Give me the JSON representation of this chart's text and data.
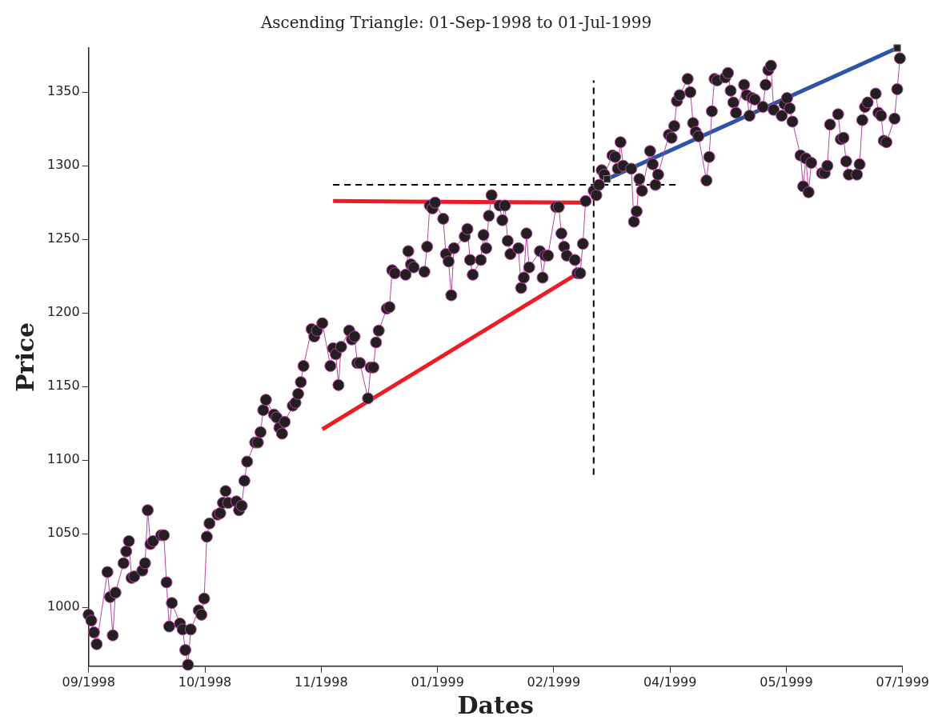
{
  "chart_data": {
    "type": "line",
    "title": "Ascending Triangle: 01-Sep-1998 to 01-Jul-1999",
    "xlabel": "Dates",
    "ylabel": "Price",
    "xlim": [
      "1998-09-01",
      "1999-07-01"
    ],
    "xticks": [
      {
        "value": "1998-09-01",
        "label": "09/1998"
      },
      {
        "value": "1998-10-14T07:00",
        "label": "10/1998"
      },
      {
        "value": "1998-11-26T14:00",
        "label": "11/1998"
      },
      {
        "value": "1999-01-08T21:00",
        "label": "01/1999"
      },
      {
        "value": "1999-02-21T03:00",
        "label": "02/1999"
      },
      {
        "value": "1999-04-05T10:00",
        "label": "04/1999"
      },
      {
        "value": "1999-05-18T17:00",
        "label": "05/1999"
      },
      {
        "value": "1999-07-01",
        "label": "07/1999"
      }
    ],
    "ylim": [
      960,
      1380
    ],
    "yticks": [
      1000,
      1050,
      1100,
      1150,
      1200,
      1250,
      1300,
      1350
    ],
    "series": [
      {
        "type": "line",
        "marker": "circle",
        "color": "#b5459f",
        "x": [
          "1998-09-01",
          "1998-09-02",
          "1998-09-03",
          "1998-09-04",
          "1998-09-08",
          "1998-09-09",
          "1998-09-10",
          "1998-09-11",
          "1998-09-14",
          "1998-09-15",
          "1998-09-16",
          "1998-09-17",
          "1998-09-18",
          "1998-09-21",
          "1998-09-22",
          "1998-09-23",
          "1998-09-24",
          "1998-09-25",
          "1998-09-28",
          "1998-09-29",
          "1998-09-30",
          "1998-10-01",
          "1998-10-02",
          "1998-10-05",
          "1998-10-06",
          "1998-10-07",
          "1998-10-08",
          "1998-10-09",
          "1998-10-12",
          "1998-10-13",
          "1998-10-14",
          "1998-10-15",
          "1998-10-16",
          "1998-10-19",
          "1998-10-20",
          "1998-10-21",
          "1998-10-22",
          "1998-10-23",
          "1998-10-26",
          "1998-10-27",
          "1998-10-28",
          "1998-10-29",
          "1998-10-30",
          "1998-11-02",
          "1998-11-03",
          "1998-11-04",
          "1998-11-05",
          "1998-11-06",
          "1998-11-09",
          "1998-11-10",
          "1998-11-11",
          "1998-11-12",
          "1998-11-13",
          "1998-11-16",
          "1998-11-17",
          "1998-11-18",
          "1998-11-19",
          "1998-11-20",
          "1998-11-23",
          "1998-11-24",
          "1998-11-25",
          "1998-11-27",
          "1998-11-30",
          "1998-12-01",
          "1998-12-02",
          "1998-12-03",
          "1998-12-04",
          "1998-12-07",
          "1998-12-08",
          "1998-12-09",
          "1998-12-10",
          "1998-12-11",
          "1998-12-14",
          "1998-12-15",
          "1998-12-16",
          "1998-12-17",
          "1998-12-18",
          "1998-12-21",
          "1998-12-22",
          "1998-12-23",
          "1998-12-24",
          "1998-12-28",
          "1998-12-29",
          "1998-12-30",
          "1998-12-31",
          "1999-01-04",
          "1999-01-05",
          "1999-01-06",
          "1999-01-07",
          "1999-01-08",
          "1999-01-11",
          "1999-01-12",
          "1999-01-13",
          "1999-01-14",
          "1999-01-15",
          "1999-01-19",
          "1999-01-20",
          "1999-01-21",
          "1999-01-22",
          "1999-01-25",
          "1999-01-26",
          "1999-01-27",
          "1999-01-28",
          "1999-01-29",
          "1999-02-01",
          "1999-02-02",
          "1999-02-03",
          "1999-02-04",
          "1999-02-05",
          "1999-02-08",
          "1999-02-09",
          "1999-02-10",
          "1999-02-11",
          "1999-02-12",
          "1999-02-16",
          "1999-02-17",
          "1999-02-18",
          "1999-02-19",
          "1999-02-22",
          "1999-02-23",
          "1999-02-24",
          "1999-02-25",
          "1999-02-26",
          "1999-03-01",
          "1999-03-02",
          "1999-03-03",
          "1999-03-04",
          "1999-03-05",
          "1999-03-08",
          "1999-03-09",
          "1999-03-10",
          "1999-03-11",
          "1999-03-12",
          "1999-03-15",
          "1999-03-16",
          "1999-03-17",
          "1999-03-18",
          "1999-03-19",
          "1999-03-22",
          "1999-03-23",
          "1999-03-24",
          "1999-03-25",
          "1999-03-26",
          "1999-03-29",
          "1999-03-30",
          "1999-03-31",
          "1999-04-01",
          "1999-04-05",
          "1999-04-06",
          "1999-04-07",
          "1999-04-08",
          "1999-04-09",
          "1999-04-12",
          "1999-04-13",
          "1999-04-14",
          "1999-04-15",
          "1999-04-16",
          "1999-04-19",
          "1999-04-20",
          "1999-04-21",
          "1999-04-22",
          "1999-04-23",
          "1999-04-26",
          "1999-04-27",
          "1999-04-28",
          "1999-04-29",
          "1999-04-30",
          "1999-05-03",
          "1999-05-04",
          "1999-05-05",
          "1999-05-06",
          "1999-05-07",
          "1999-05-10",
          "1999-05-11",
          "1999-05-12",
          "1999-05-13",
          "1999-05-14",
          "1999-05-17",
          "1999-05-18",
          "1999-05-19",
          "1999-05-20",
          "1999-05-21",
          "1999-05-24",
          "1999-05-25",
          "1999-05-26",
          "1999-05-27",
          "1999-05-28",
          "1999-06-01",
          "1999-06-02",
          "1999-06-03",
          "1999-06-04",
          "1999-06-07",
          "1999-06-08",
          "1999-06-09",
          "1999-06-10",
          "1999-06-11",
          "1999-06-14",
          "1999-06-15",
          "1999-06-16",
          "1999-06-17",
          "1999-06-18",
          "1999-06-21",
          "1999-06-22",
          "1999-06-23",
          "1999-06-24",
          "1999-06-25",
          "1999-06-28",
          "1999-06-29",
          "1999-06-30"
        ],
        "values": [
          995,
          991,
          983,
          975,
          1024,
          1007,
          981,
          1010,
          1030,
          1038,
          1045,
          1020,
          1021,
          1025,
          1030,
          1066,
          1043,
          1045,
          1049,
          1049,
          1017,
          987,
          1003,
          989,
          985,
          971,
          961,
          985,
          998,
          995,
          1006,
          1048,
          1057,
          1063,
          1064,
          1071,
          1079,
          1071,
          1072,
          1066,
          1069,
          1086,
          1099,
          1112,
          1112,
          1119,
          1134,
          1141,
          1131,
          1129,
          1122,
          1118,
          1126,
          1137,
          1139,
          1145,
          1153,
          1164,
          1189,
          1184,
          1188,
          1193,
          1164,
          1176,
          1172,
          1151,
          1177,
          1188,
          1182,
          1184,
          1166,
          1166,
          1142,
          1163,
          1163,
          1180,
          1188,
          1203,
          1204,
          1229,
          1227,
          1226,
          1242,
          1233,
          1231,
          1228,
          1245,
          1273,
          1271,
          1275,
          1264,
          1240,
          1235,
          1212,
          1244,
          1252,
          1257,
          1236,
          1226,
          1236,
          1253,
          1244,
          1266,
          1280,
          1273,
          1263,
          1273,
          1249,
          1240,
          1244,
          1217,
          1224,
          1254,
          1231,
          1242,
          1224,
          1239,
          1239,
          1272,
          1272,
          1254,
          1245,
          1239,
          1236,
          1227,
          1227,
          1247,
          1276,
          1283,
          1280,
          1287,
          1297,
          1294,
          1307,
          1306,
          1298,
          1316,
          1300,
          1298,
          1262,
          1269,
          1291,
          1283,
          1310,
          1301,
          1287,
          1294,
          1321,
          1319,
          1327,
          1344,
          1348,
          1359,
          1350,
          1329,
          1323,
          1320,
          1290,
          1306,
          1337,
          1359,
          1358,
          1360,
          1363,
          1351,
          1343,
          1336,
          1355,
          1348,
          1334,
          1346,
          1345,
          1340,
          1355,
          1365,
          1368,
          1338,
          1334,
          1342,
          1346,
          1339,
          1330,
          1307,
          1286,
          1305,
          1282,
          1302,
          1295,
          1295,
          1300,
          1328,
          1335,
          1318,
          1319,
          1303,
          1294,
          1294,
          1301,
          1331,
          1340,
          1343,
          1349,
          1336,
          1334,
          1317,
          1316,
          1332,
          1352,
          1373
        ]
      },
      {
        "type": "line",
        "marker": "none",
        "line_style": "solid",
        "color": "#ed1c24",
        "x": [
          "1998-12-01",
          "1999-03-04"
        ],
        "values": [
          1276,
          1275
        ]
      },
      {
        "type": "line",
        "marker": "none",
        "line_style": "solid",
        "color": "#ed1c24",
        "x": [
          "1998-11-27",
          "1999-03-04"
        ],
        "values": [
          1121,
          1229
        ]
      },
      {
        "type": "line",
        "marker": "none",
        "line_style": "dashed",
        "color": "#000000",
        "x": [
          "1998-12-01",
          "1999-04-08"
        ],
        "values": [
          1287,
          1287
        ]
      },
      {
        "type": "line",
        "marker": "none",
        "line_style": "dashed",
        "color": "#000000",
        "x": [
          "1999-03-08",
          "1999-03-08"
        ],
        "values": [
          1090,
          1358
        ]
      },
      {
        "type": "line",
        "marker": "none",
        "line_style": "solid",
        "color": "#2e54a6",
        "x": [
          "1999-03-13",
          "1999-06-29"
        ],
        "values": [
          1291,
          1380
        ]
      },
      {
        "type": "scatter",
        "marker": "square",
        "color": "#231f20",
        "x": [
          "1999-03-13",
          "1999-06-29"
        ],
        "values": [
          1291,
          1380
        ]
      }
    ]
  }
}
